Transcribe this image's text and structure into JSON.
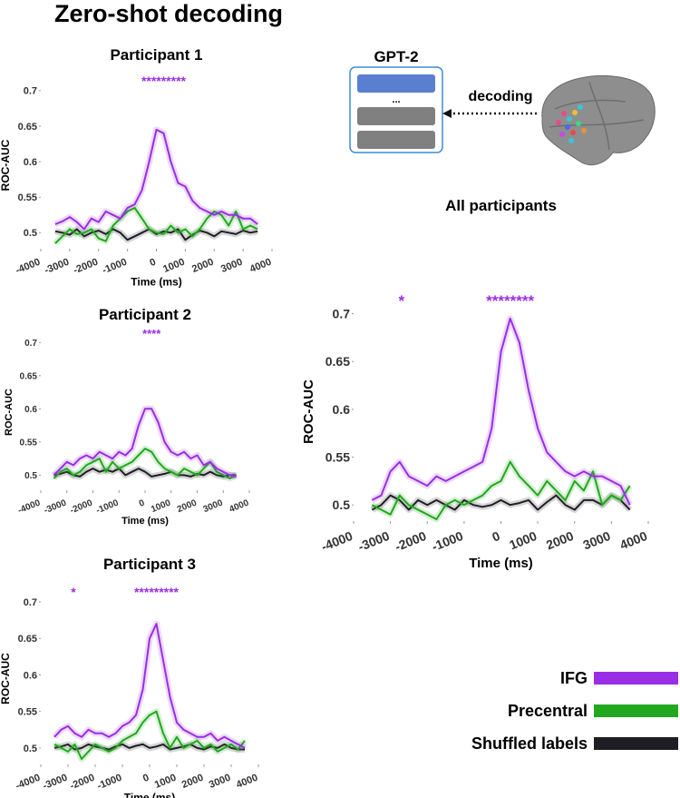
{
  "title": "Zero-shot decoding",
  "diagram": {
    "model": "GPT-2",
    "ellipsis": "...",
    "arrow_label": "decoding"
  },
  "chart_data": [
    {
      "type": "line",
      "title": "Participant 1",
      "xlabel": "Time (ms)",
      "ylabel": "ROC-AUC",
      "x": [
        -3500,
        -3250,
        -3000,
        -2750,
        -2500,
        -2250,
        -2000,
        -1750,
        -1500,
        -1250,
        -1000,
        -750,
        -500,
        -250,
        0,
        250,
        500,
        750,
        1000,
        1250,
        1500,
        1750,
        2000,
        2250,
        2500,
        2750,
        3000,
        3250,
        3500
      ],
      "series": [
        {
          "color": "#9a2ee6",
          "values": [
            0.512,
            0.516,
            0.522,
            0.515,
            0.505,
            0.52,
            0.515,
            0.53,
            0.525,
            0.52,
            0.535,
            0.54,
            0.56,
            0.6,
            0.645,
            0.64,
            0.6,
            0.57,
            0.565,
            0.545,
            0.535,
            0.53,
            0.525,
            0.53,
            0.525,
            0.525,
            0.52,
            0.52,
            0.512
          ]
        },
        {
          "color": "#22a81e",
          "values": [
            0.485,
            0.495,
            0.505,
            0.498,
            0.5,
            0.505,
            0.492,
            0.488,
            0.51,
            0.52,
            0.53,
            0.535,
            0.52,
            0.505,
            0.5,
            0.498,
            0.51,
            0.5,
            0.505,
            0.495,
            0.505,
            0.52,
            0.53,
            0.525,
            0.51,
            0.53,
            0.505,
            0.51,
            0.505
          ]
        },
        {
          "color": "#1e1e24",
          "values": [
            0.502,
            0.5,
            0.497,
            0.505,
            0.495,
            0.5,
            0.503,
            0.498,
            0.505,
            0.5,
            0.49,
            0.495,
            0.5,
            0.505,
            0.498,
            0.502,
            0.5,
            0.505,
            0.49,
            0.497,
            0.503,
            0.5,
            0.495,
            0.502,
            0.5,
            0.498,
            0.503,
            0.5,
            0.502
          ]
        }
      ],
      "annotations": [
        {
          "text": "*********",
          "x": 250
        }
      ],
      "xlim": [
        -4000,
        4000
      ],
      "xticks": [
        -4000,
        -3000,
        -2000,
        -1000,
        0,
        1000,
        2000,
        3000,
        4000
      ],
      "ylim": [
        0.48,
        0.71
      ],
      "yticks": [
        0.5,
        0.55,
        0.6,
        0.65,
        0.7
      ]
    },
    {
      "type": "line",
      "title": "Participant 2",
      "xlabel": "Time (ms)",
      "ylabel": "ROC-AUC",
      "x": [
        -3500,
        -3250,
        -3000,
        -2750,
        -2500,
        -2250,
        -2000,
        -1750,
        -1500,
        -1250,
        -1000,
        -750,
        -500,
        -250,
        0,
        250,
        500,
        750,
        1000,
        1250,
        1500,
        1750,
        2000,
        2250,
        2500,
        2750,
        3000,
        3250,
        3500
      ],
      "series": [
        {
          "color": "#9a2ee6",
          "values": [
            0.5,
            0.51,
            0.52,
            0.515,
            0.525,
            0.53,
            0.525,
            0.535,
            0.53,
            0.525,
            0.535,
            0.53,
            0.54,
            0.575,
            0.6,
            0.6,
            0.58,
            0.55,
            0.535,
            0.53,
            0.535,
            0.525,
            0.53,
            0.515,
            0.52,
            0.51,
            0.505,
            0.5,
            0.498
          ]
        },
        {
          "color": "#22a81e",
          "values": [
            0.495,
            0.505,
            0.51,
            0.5,
            0.505,
            0.515,
            0.52,
            0.525,
            0.505,
            0.52,
            0.51,
            0.515,
            0.52,
            0.53,
            0.54,
            0.535,
            0.52,
            0.51,
            0.505,
            0.5,
            0.51,
            0.505,
            0.5,
            0.51,
            0.52,
            0.505,
            0.5,
            0.495,
            0.5
          ]
        },
        {
          "color": "#1e1e24",
          "values": [
            0.5,
            0.502,
            0.505,
            0.5,
            0.498,
            0.505,
            0.51,
            0.505,
            0.508,
            0.505,
            0.51,
            0.5,
            0.505,
            0.51,
            0.505,
            0.498,
            0.5,
            0.502,
            0.505,
            0.5,
            0.5,
            0.498,
            0.502,
            0.5,
            0.505,
            0.5,
            0.498,
            0.5,
            0.5
          ]
        }
      ],
      "annotations": [
        {
          "text": "****",
          "x": 250
        }
      ],
      "xlim": [
        -4000,
        4000
      ],
      "xticks": [
        -4000,
        -3000,
        -2000,
        -1000,
        0,
        1000,
        2000,
        3000,
        4000
      ],
      "ylim": [
        0.48,
        0.71
      ],
      "yticks": [
        0.5,
        0.55,
        0.6,
        0.65,
        0.7
      ]
    },
    {
      "type": "line",
      "title": "Participant 3",
      "xlabel": "Time (ms)",
      "ylabel": "ROC-AUC",
      "x": [
        -3500,
        -3250,
        -3000,
        -2750,
        -2500,
        -2250,
        -2000,
        -1750,
        -1500,
        -1250,
        -1000,
        -750,
        -500,
        -250,
        0,
        250,
        500,
        750,
        1000,
        1250,
        1500,
        1750,
        2000,
        2250,
        2500,
        2750,
        3000,
        3250,
        3500
      ],
      "series": [
        {
          "color": "#9a2ee6",
          "values": [
            0.515,
            0.525,
            0.53,
            0.52,
            0.515,
            0.525,
            0.52,
            0.52,
            0.515,
            0.52,
            0.53,
            0.535,
            0.545,
            0.58,
            0.65,
            0.67,
            0.62,
            0.57,
            0.535,
            0.525,
            0.52,
            0.515,
            0.515,
            0.52,
            0.51,
            0.515,
            0.51,
            0.505,
            0.5
          ]
        },
        {
          "color": "#22a81e",
          "values": [
            0.505,
            0.5,
            0.495,
            0.505,
            0.485,
            0.495,
            0.505,
            0.5,
            0.495,
            0.5,
            0.51,
            0.515,
            0.52,
            0.535,
            0.545,
            0.55,
            0.52,
            0.5,
            0.515,
            0.5,
            0.505,
            0.51,
            0.5,
            0.505,
            0.495,
            0.5,
            0.505,
            0.498,
            0.51
          ]
        },
        {
          "color": "#1e1e24",
          "values": [
            0.5,
            0.502,
            0.505,
            0.498,
            0.5,
            0.505,
            0.502,
            0.5,
            0.498,
            0.502,
            0.505,
            0.5,
            0.503,
            0.505,
            0.5,
            0.502,
            0.505,
            0.498,
            0.5,
            0.502,
            0.505,
            0.5,
            0.498,
            0.502,
            0.5,
            0.505,
            0.5,
            0.498,
            0.498
          ]
        }
      ],
      "annotations": [
        {
          "text": "*",
          "x": -2800
        },
        {
          "text": "*********",
          "x": 250
        }
      ],
      "xlim": [
        -4000,
        4000
      ],
      "xticks": [
        -4000,
        -3000,
        -2000,
        -1000,
        0,
        1000,
        2000,
        3000,
        4000
      ],
      "ylim": [
        0.48,
        0.71
      ],
      "yticks": [
        0.5,
        0.55,
        0.6,
        0.65,
        0.7
      ]
    },
    {
      "type": "line",
      "title": "All participants",
      "xlabel": "Time (ms)",
      "ylabel": "ROC-AUC",
      "x": [
        -3500,
        -3250,
        -3000,
        -2750,
        -2500,
        -2250,
        -2000,
        -1750,
        -1500,
        -1250,
        -1000,
        -750,
        -500,
        -250,
        0,
        250,
        500,
        750,
        1000,
        1250,
        1500,
        1750,
        2000,
        2250,
        2500,
        2750,
        3000,
        3250,
        3500
      ],
      "series": [
        {
          "name": "IFG",
          "color": "#9a2ee6",
          "values": [
            0.505,
            0.51,
            0.535,
            0.545,
            0.53,
            0.525,
            0.52,
            0.53,
            0.525,
            0.53,
            0.535,
            0.54,
            0.545,
            0.58,
            0.66,
            0.695,
            0.67,
            0.62,
            0.58,
            0.555,
            0.545,
            0.535,
            0.53,
            0.535,
            0.53,
            0.53,
            0.525,
            0.52,
            0.5
          ]
        },
        {
          "name": "Precentral",
          "color": "#22a81e",
          "values": [
            0.5,
            0.495,
            0.49,
            0.51,
            0.5,
            0.495,
            0.49,
            0.485,
            0.5,
            0.505,
            0.5,
            0.505,
            0.51,
            0.52,
            0.525,
            0.545,
            0.53,
            0.52,
            0.51,
            0.525,
            0.515,
            0.505,
            0.525,
            0.515,
            0.535,
            0.5,
            0.51,
            0.505,
            0.52
          ]
        },
        {
          "name": "Shuffled labels",
          "color": "#1e1e24",
          "values": [
            0.495,
            0.5,
            0.51,
            0.505,
            0.495,
            0.505,
            0.5,
            0.505,
            0.5,
            0.495,
            0.505,
            0.5,
            0.498,
            0.5,
            0.505,
            0.5,
            0.502,
            0.505,
            0.495,
            0.503,
            0.51,
            0.5,
            0.495,
            0.505,
            0.505,
            0.5,
            0.51,
            0.505,
            0.495
          ]
        }
      ],
      "annotations": [
        {
          "text": "*",
          "x": -2700
        },
        {
          "text": "********",
          "x": 250
        }
      ],
      "xlim": [
        -4000,
        4000
      ],
      "xticks": [
        -4000,
        -3000,
        -2000,
        -1000,
        0,
        1000,
        2000,
        3000,
        4000
      ],
      "ylim": [
        0.485,
        0.71
      ],
      "yticks": [
        0.5,
        0.55,
        0.6,
        0.65,
        0.7
      ]
    }
  ]
}
